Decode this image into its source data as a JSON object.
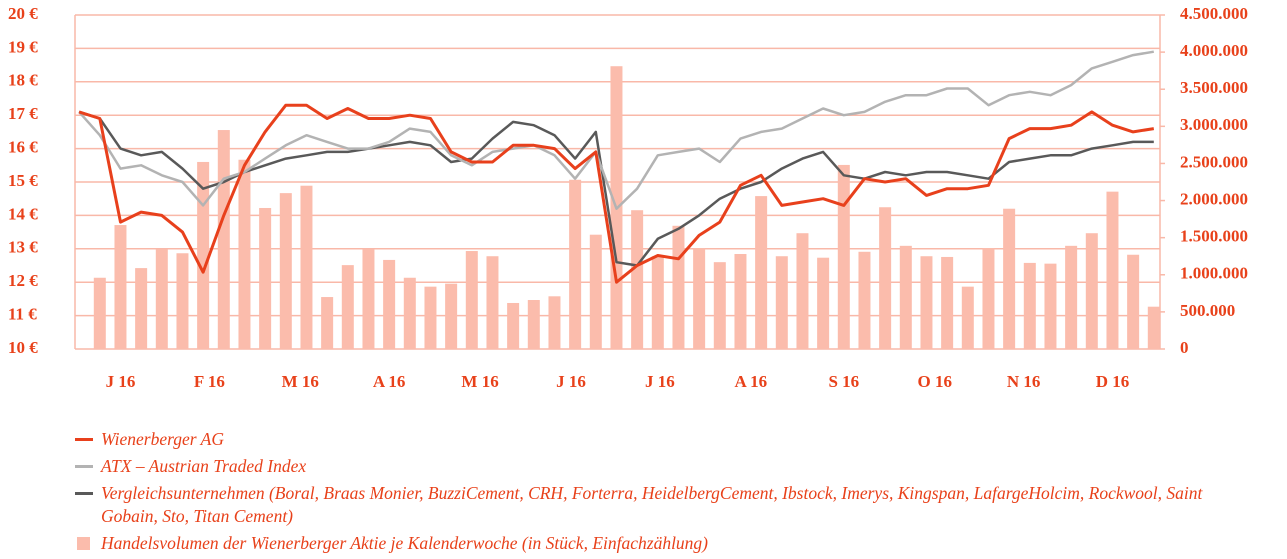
{
  "chart_data": {
    "type": "line",
    "x": [
      0,
      1,
      2,
      3,
      4,
      5,
      6,
      7,
      8,
      9,
      10,
      11,
      12,
      13,
      14,
      15,
      16,
      17,
      18,
      19,
      20,
      21,
      22,
      23,
      24,
      25,
      26,
      27,
      28,
      29,
      30,
      31,
      32,
      33,
      34,
      35,
      36,
      37,
      38,
      39,
      40,
      41,
      42,
      43,
      44,
      45,
      46,
      47,
      48,
      49,
      50,
      51,
      52
    ],
    "xlim": [
      -0.2,
      52.3
    ],
    "xticks": [
      {
        "value": 2.0,
        "label": "J 16"
      },
      {
        "value": 6.3,
        "label": "F 16"
      },
      {
        "value": 10.7,
        "label": "M 16"
      },
      {
        "value": 15.0,
        "label": "A 16"
      },
      {
        "value": 19.4,
        "label": "M 16"
      },
      {
        "value": 23.8,
        "label": "J 16"
      },
      {
        "value": 28.1,
        "label": "J 16"
      },
      {
        "value": 32.5,
        "label": "A 16"
      },
      {
        "value": 37.0,
        "label": "S 16"
      },
      {
        "value": 41.4,
        "label": "O 16"
      },
      {
        "value": 45.7,
        "label": "N 16"
      },
      {
        "value": 50.0,
        "label": "D 16"
      }
    ],
    "ylim": [
      10,
      20
    ],
    "yticks": [
      {
        "value": 10,
        "label": "10 €"
      },
      {
        "value": 11,
        "label": "11 €"
      },
      {
        "value": 12,
        "label": "12 €"
      },
      {
        "value": 13,
        "label": "13 €"
      },
      {
        "value": 14,
        "label": "14 €"
      },
      {
        "value": 15,
        "label": "15 €"
      },
      {
        "value": 16,
        "label": "16 €"
      },
      {
        "value": 17,
        "label": "17 €"
      },
      {
        "value": 18,
        "label": "18 €"
      },
      {
        "value": 19,
        "label": "19 €"
      },
      {
        "value": 20,
        "label": "20 €"
      }
    ],
    "y2lim": [
      0,
      4500000
    ],
    "y2ticks": [
      0,
      {
        "value": 500000,
        "label": "500.000"
      },
      {
        "value": 1000000,
        "label": "1.000.000"
      },
      {
        "value": 1500000,
        "label": "1.500.000"
      },
      {
        "value": 2000000,
        "label": "2.000.000"
      },
      {
        "value": 2500000,
        "label": "2.500.000"
      },
      {
        "value": 3000000,
        "label": "3.000.000"
      },
      {
        "value": 3500000,
        "label": "3.500.000"
      },
      {
        "value": 4000000,
        "label": "4.000.000"
      },
      {
        "value": 4500000,
        "label": "4.500.000"
      }
    ],
    "grid": true,
    "series": [
      {
        "name": "Wienerberger AG",
        "color": "#e8401c",
        "type": "line",
        "values": [
          17.1,
          16.9,
          13.8,
          14.1,
          14.0,
          13.5,
          12.3,
          14.0,
          15.5,
          16.5,
          17.3,
          17.3,
          16.9,
          17.2,
          16.9,
          16.9,
          17.0,
          16.9,
          15.9,
          15.6,
          15.6,
          16.1,
          16.1,
          16.0,
          15.4,
          15.9,
          12.0,
          12.5,
          12.8,
          12.7,
          13.4,
          13.8,
          14.9,
          15.2,
          14.3,
          14.4,
          14.5,
          14.3,
          15.1,
          15.0,
          15.1,
          14.6,
          14.8,
          14.8,
          14.9,
          16.3,
          16.6,
          16.6,
          16.7,
          17.1,
          16.7,
          16.5,
          16.6
        ]
      },
      {
        "name": "ATX – Austrian Traded Index",
        "color": "#b3b3b3",
        "type": "line",
        "values": [
          17.1,
          16.4,
          15.4,
          15.5,
          15.2,
          15.0,
          14.3,
          15.1,
          15.3,
          15.7,
          16.1,
          16.4,
          16.2,
          16.0,
          16.0,
          16.2,
          16.6,
          16.5,
          15.8,
          15.5,
          15.9,
          16.0,
          16.1,
          15.8,
          15.1,
          15.9,
          14.2,
          14.8,
          15.8,
          15.9,
          16.0,
          15.6,
          16.3,
          16.5,
          16.6,
          16.9,
          17.2,
          17.0,
          17.1,
          17.4,
          17.6,
          17.6,
          17.8,
          17.8,
          17.3,
          17.6,
          17.7,
          17.6,
          17.9,
          18.4,
          18.6,
          18.8,
          18.9
        ]
      },
      {
        "name": "Vergleichsunternehmen (Boral, Braas Monier, BuzziCement, CRH, Forterra, HeidelbergCement, Ibstock, Imerys, Kingspan, LafargeHolcim, Rockwool, Saint Gobain, Sto, Titan Cement)",
        "color": "#595959",
        "type": "line",
        "values": [
          17.1,
          16.9,
          16.0,
          15.8,
          15.9,
          15.4,
          14.8,
          15.0,
          15.3,
          15.5,
          15.7,
          15.8,
          15.9,
          15.9,
          16.0,
          16.1,
          16.2,
          16.1,
          15.6,
          15.7,
          16.3,
          16.8,
          16.7,
          16.4,
          15.7,
          16.5,
          12.6,
          12.5,
          13.3,
          13.6,
          14.0,
          14.5,
          14.8,
          15.0,
          15.4,
          15.7,
          15.9,
          15.2,
          15.1,
          15.3,
          15.2,
          15.3,
          15.3,
          15.2,
          15.1,
          15.6,
          15.7,
          15.8,
          15.8,
          16.0,
          16.1,
          16.2,
          16.2
        ]
      },
      {
        "name": "Handelsvolumen der Wienerberger Aktie je Kalenderwoche (in Stück, Einfachzählung)",
        "color": "#fbbcac",
        "type": "bar",
        "axis": "y2",
        "values": [
          null,
          960000,
          1670000,
          1090000,
          1350000,
          1290000,
          2520000,
          2950000,
          2550000,
          1900000,
          2100000,
          2200000,
          700000,
          1130000,
          1350000,
          1200000,
          960000,
          840000,
          880000,
          1320000,
          1250000,
          620000,
          660000,
          710000,
          2280000,
          1540000,
          3810000,
          1870000,
          1250000,
          1660000,
          1360000,
          1170000,
          1280000,
          2060000,
          1250000,
          1560000,
          1230000,
          2480000,
          1310000,
          1910000,
          1390000,
          1250000,
          1240000,
          840000,
          1360000,
          1890000,
          1160000,
          1150000,
          1390000,
          1560000,
          2120000,
          1270000,
          570000
        ]
      }
    ]
  }
}
